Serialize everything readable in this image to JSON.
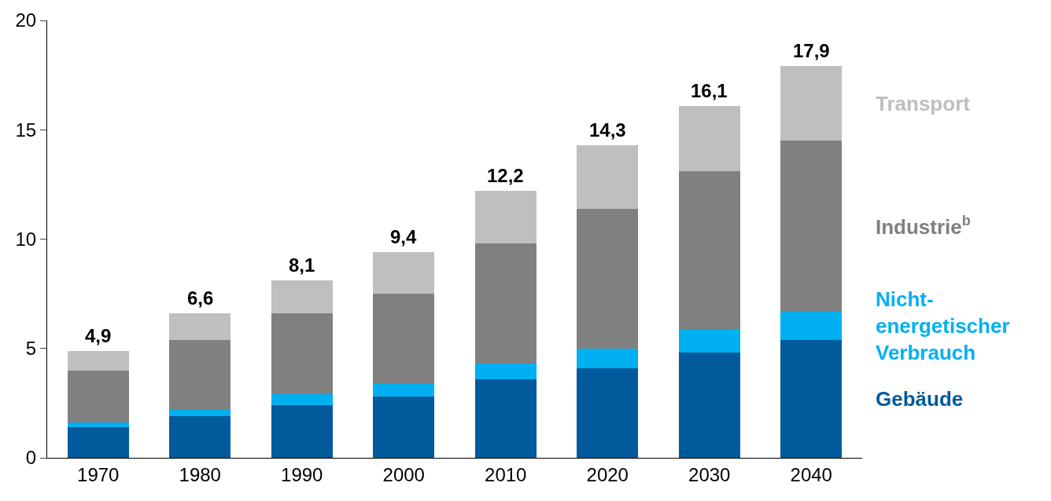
{
  "chart_data": {
    "type": "bar",
    "stacked": true,
    "categories": [
      "1970",
      "1980",
      "1990",
      "2000",
      "2010",
      "2020",
      "2030",
      "2040"
    ],
    "series": [
      {
        "name": "Gebäude",
        "color": "#005a9c",
        "values": [
          1.4,
          1.9,
          2.4,
          2.8,
          3.6,
          4.1,
          4.8,
          5.4
        ]
      },
      {
        "name": "Nicht-energetischer Verbrauch",
        "color": "#00b0f0",
        "values": [
          0.2,
          0.3,
          0.5,
          0.6,
          0.7,
          0.9,
          1.1,
          1.3
        ]
      },
      {
        "name": "Industrie$^{b}$",
        "color": "#808080",
        "values": [
          2.4,
          3.2,
          3.7,
          4.1,
          5.5,
          6.4,
          7.2,
          7.8
        ]
      },
      {
        "name": "Transport",
        "color": "#bfbfbf",
        "values": [
          0.9,
          1.2,
          1.5,
          1.9,
          2.4,
          2.9,
          3.0,
          3.4
        ]
      }
    ],
    "totals": [
      "4,9",
      "6,6",
      "8,1",
      "9,4",
      "12,2",
      "14,3",
      "16,1",
      "17,9"
    ],
    "ylim": [
      0,
      20
    ],
    "yticks": [
      0,
      5,
      10,
      15,
      20
    ],
    "legend": false
  }
}
